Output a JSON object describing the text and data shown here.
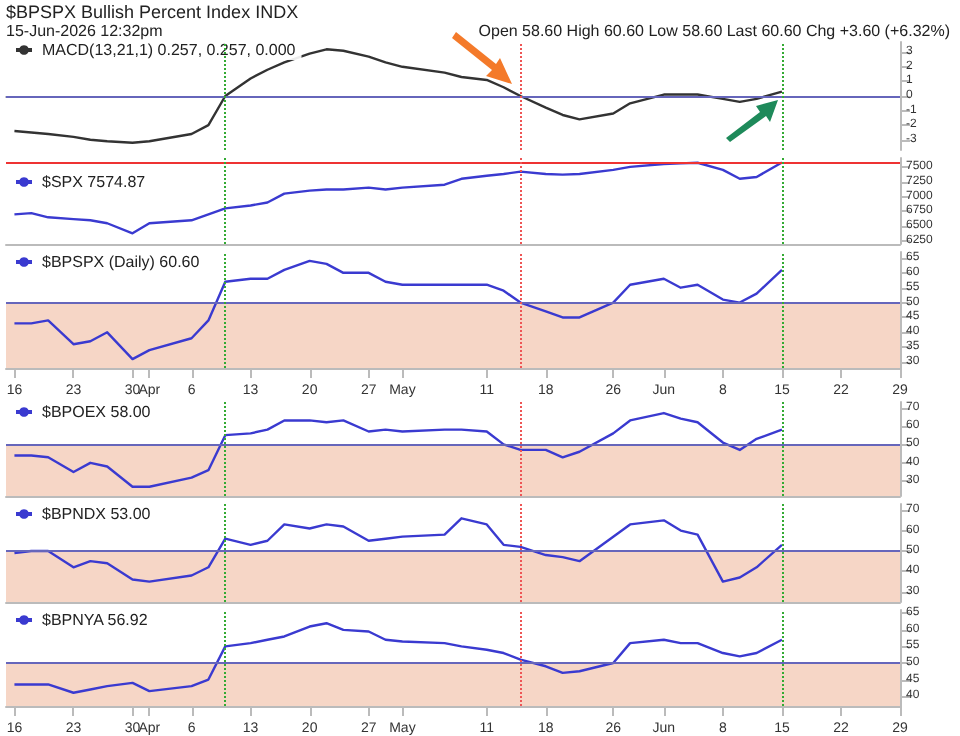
{
  "chart_data": [
    {
      "type": "line",
      "title": "$BPSPX Bullish Percent Index INDX",
      "subtitle": "15-Jun-2026 12:32pm",
      "annotations": [
        "Open 58.60  High 60.60  Low 58.60  Last 60.60  Chg +3.60 (+6.32%)"
      ],
      "legend": "top left",
      "tick_labels": "y",
      "xlim": [
        "2026-03-15",
        "2026-06-29"
      ],
      "ylim": [
        -3.7,
        3.7
      ],
      "yticks": [
        -3,
        -2,
        -1,
        0,
        1,
        2,
        3
      ],
      "x": [
        "2026-03-16",
        "2026-03-18",
        "2026-03-20",
        "2026-03-23",
        "2026-03-25",
        "2026-03-27",
        "2026-03-30",
        "2026-04-01",
        "2026-04-06",
        "2026-04-08",
        "2026-04-10",
        "2026-04-13",
        "2026-04-15",
        "2026-04-17",
        "2026-04-20",
        "2026-04-22",
        "2026-04-24",
        "2026-04-27",
        "2026-04-29",
        "2026-05-01",
        "2026-05-06",
        "2026-05-08",
        "2026-05-11",
        "2026-05-13",
        "2026-05-15",
        "2026-05-18",
        "2026-05-20",
        "2026-05-22",
        "2026-05-26",
        "2026-05-28",
        "2026-06-01",
        "2026-06-03",
        "2026-06-05",
        "2026-06-08",
        "2026-06-10",
        "2026-06-12",
        "2026-06-15"
      ],
      "series": [
        {
          "name": "MACD(13,21,1) 0.257, 0.257, 0.000",
          "color": "#333333",
          "values": [
            -2.4,
            -2.5,
            -2.6,
            -2.8,
            -3,
            -3.1,
            -3.2,
            -3.1,
            -2.6,
            -2,
            0,
            1.2,
            1.8,
            2.3,
            2.9,
            3.2,
            3.1,
            2.7,
            2.3,
            2,
            1.6,
            1.3,
            1.1,
            0.6,
            0,
            -0.8,
            -1.3,
            -1.6,
            -1.2,
            -0.5,
            0.1,
            0.1,
            0.1,
            -0.2,
            -0.4,
            -0.2,
            0.3
          ]
        }
      ],
      "ref_lines": [
        {
          "axis": "y",
          "value": 0,
          "color": "#6666bb",
          "line_style": "solid"
        },
        {
          "axis": "x",
          "value": "2026-04-10",
          "color": "#33aa33",
          "line_style": "dotted"
        },
        {
          "axis": "x",
          "value": "2026-05-15",
          "color": "#ee5555",
          "line_style": "dotted"
        },
        {
          "axis": "x",
          "value": "2026-06-15",
          "color": "#33aa33",
          "line_style": "dotted"
        }
      ]
    },
    {
      "type": "line",
      "legend": "top left",
      "tick_labels": "y",
      "xlim": [
        "2026-03-15",
        "2026-06-29"
      ],
      "ylim": [
        6200,
        7650
      ],
      "yticks": [
        6250,
        6500,
        6750,
        7000,
        7250,
        7500
      ],
      "x": [
        "2026-03-16",
        "2026-03-18",
        "2026-03-20",
        "2026-03-23",
        "2026-03-25",
        "2026-03-27",
        "2026-03-30",
        "2026-04-01",
        "2026-04-06",
        "2026-04-08",
        "2026-04-10",
        "2026-04-13",
        "2026-04-15",
        "2026-04-17",
        "2026-04-20",
        "2026-04-22",
        "2026-04-24",
        "2026-04-27",
        "2026-04-29",
        "2026-05-01",
        "2026-05-06",
        "2026-05-08",
        "2026-05-11",
        "2026-05-13",
        "2026-05-15",
        "2026-05-18",
        "2026-05-20",
        "2026-05-22",
        "2026-05-26",
        "2026-05-28",
        "2026-06-01",
        "2026-06-03",
        "2026-06-05",
        "2026-06-08",
        "2026-06-10",
        "2026-06-12",
        "2026-06-15"
      ],
      "series": [
        {
          "name": "$SPX 7574.87",
          "color": "#3a3ad0",
          "values": [
            6700,
            6720,
            6650,
            6620,
            6600,
            6550,
            6380,
            6550,
            6600,
            6700,
            6800,
            6850,
            6900,
            7050,
            7100,
            7120,
            7120,
            7150,
            7120,
            7150,
            7200,
            7300,
            7350,
            7380,
            7420,
            7380,
            7370,
            7380,
            7450,
            7500,
            7550,
            7560,
            7570,
            7450,
            7300,
            7330,
            7575
          ]
        }
      ],
      "ref_lines": [
        {
          "axis": "y",
          "value": 7575,
          "color": "#ee3333",
          "line_style": "solid"
        },
        {
          "axis": "x",
          "value": "2026-04-10",
          "color": "#33aa33",
          "line_style": "dotted"
        },
        {
          "axis": "x",
          "value": "2026-05-15",
          "color": "#ee5555",
          "line_style": "dotted"
        },
        {
          "axis": "x",
          "value": "2026-06-15",
          "color": "#33aa33",
          "line_style": "dotted"
        }
      ]
    },
    {
      "type": "line",
      "legend": "top left",
      "xlim": [
        "2026-03-15",
        "2026-06-29"
      ],
      "ylim": [
        28,
        67
      ],
      "yticks": [
        30,
        35,
        40,
        45,
        50,
        55,
        60,
        65
      ],
      "xticks": [
        {
          "value": "2026-03-16",
          "label": "16"
        },
        {
          "value": "2026-03-23",
          "label": "23"
        },
        {
          "value": "2026-03-30",
          "label": "30"
        },
        {
          "value": "2026-04-01",
          "label": "Apr"
        },
        {
          "value": "2026-04-06",
          "label": "6"
        },
        {
          "value": "2026-04-13",
          "label": "13"
        },
        {
          "value": "2026-04-20",
          "label": "20"
        },
        {
          "value": "2026-04-27",
          "label": "27"
        },
        {
          "value": "2026-05-01",
          "label": "May"
        },
        {
          "value": "2026-05-11",
          "label": "11"
        },
        {
          "value": "2026-05-18",
          "label": "18"
        },
        {
          "value": "2026-05-26",
          "label": "26"
        },
        {
          "value": "2026-06-01",
          "label": "Jun"
        },
        {
          "value": "2026-06-08",
          "label": "8"
        },
        {
          "value": "2026-06-15",
          "label": "15"
        },
        {
          "value": "2026-06-22",
          "label": "22"
        },
        {
          "value": "2026-06-29",
          "label": "29"
        }
      ],
      "x": [
        "2026-03-16",
        "2026-03-18",
        "2026-03-20",
        "2026-03-23",
        "2026-03-25",
        "2026-03-27",
        "2026-03-30",
        "2026-04-01",
        "2026-04-06",
        "2026-04-08",
        "2026-04-10",
        "2026-04-13",
        "2026-04-15",
        "2026-04-17",
        "2026-04-20",
        "2026-04-22",
        "2026-04-24",
        "2026-04-27",
        "2026-04-29",
        "2026-05-01",
        "2026-05-06",
        "2026-05-08",
        "2026-05-11",
        "2026-05-13",
        "2026-05-15",
        "2026-05-18",
        "2026-05-20",
        "2026-05-22",
        "2026-05-26",
        "2026-05-28",
        "2026-06-01",
        "2026-06-03",
        "2026-06-05",
        "2026-06-08",
        "2026-06-10",
        "2026-06-12",
        "2026-06-15"
      ],
      "series": [
        {
          "name": "$BPSPX (Daily) 60.60",
          "color": "#3a3ad0",
          "values": [
            43,
            43,
            44,
            36,
            37,
            40,
            31,
            34,
            38,
            44,
            57,
            58,
            58,
            61,
            64,
            63,
            60,
            60,
            57,
            56,
            56,
            56,
            56,
            54,
            50,
            47,
            45,
            45,
            50,
            56,
            58,
            55,
            56,
            51,
            50,
            53,
            61
          ]
        }
      ],
      "ref_lines": [
        {
          "axis": "y",
          "value": 50,
          "color": "#6666bb",
          "line_style": "solid"
        },
        {
          "axis": "x",
          "value": "2026-04-10",
          "color": "#33aa33",
          "line_style": "dotted"
        },
        {
          "axis": "x",
          "value": "2026-05-15",
          "color": "#ee5555",
          "line_style": "dotted"
        },
        {
          "axis": "x",
          "value": "2026-06-15",
          "color": "#33aa33",
          "line_style": "dotted"
        }
      ],
      "bands": [
        {
          "axis": "y",
          "from": 28,
          "to": 50,
          "color": "#f6d6c6"
        }
      ]
    },
    {
      "type": "line",
      "legend": "top left",
      "tick_labels": "y",
      "xlim": [
        "2026-03-15",
        "2026-06-29"
      ],
      "ylim": [
        22,
        73
      ],
      "yticks": [
        30,
        40,
        50,
        60,
        70
      ],
      "x": [
        "2026-03-16",
        "2026-03-18",
        "2026-03-20",
        "2026-03-23",
        "2026-03-25",
        "2026-03-27",
        "2026-03-30",
        "2026-04-01",
        "2026-04-06",
        "2026-04-08",
        "2026-04-10",
        "2026-04-13",
        "2026-04-15",
        "2026-04-17",
        "2026-04-20",
        "2026-04-22",
        "2026-04-24",
        "2026-04-27",
        "2026-04-29",
        "2026-05-01",
        "2026-05-06",
        "2026-05-08",
        "2026-05-11",
        "2026-05-13",
        "2026-05-15",
        "2026-05-18",
        "2026-05-20",
        "2026-05-22",
        "2026-05-26",
        "2026-05-28",
        "2026-06-01",
        "2026-06-03",
        "2026-06-05",
        "2026-06-08",
        "2026-06-10",
        "2026-06-12",
        "2026-06-15"
      ],
      "series": [
        {
          "name": "$BPOEX 58.00",
          "color": "#3a3ad0",
          "values": [
            44,
            44,
            43,
            35,
            40,
            38,
            27,
            27,
            32,
            36,
            55,
            56,
            58,
            63,
            63,
            62,
            63,
            57,
            58,
            57,
            58,
            58,
            57,
            50,
            47,
            47,
            43,
            46,
            56,
            63,
            67,
            64,
            62,
            51,
            47,
            53,
            58
          ]
        }
      ],
      "ref_lines": [
        {
          "axis": "y",
          "value": 50,
          "color": "#6666bb",
          "line_style": "solid"
        },
        {
          "axis": "x",
          "value": "2026-04-10",
          "color": "#33aa33",
          "line_style": "dotted"
        },
        {
          "axis": "x",
          "value": "2026-05-15",
          "color": "#ee5555",
          "line_style": "dotted"
        },
        {
          "axis": "x",
          "value": "2026-06-15",
          "color": "#33aa33",
          "line_style": "dotted"
        }
      ],
      "bands": [
        {
          "axis": "y",
          "from": 22,
          "to": 50,
          "color": "#f6d6c6"
        }
      ]
    },
    {
      "type": "line",
      "legend": "top left",
      "tick_labels": "y",
      "xlim": [
        "2026-03-15",
        "2026-06-29"
      ],
      "ylim": [
        25,
        73
      ],
      "yticks": [
        30,
        40,
        50,
        60,
        70
      ],
      "x": [
        "2026-03-16",
        "2026-03-18",
        "2026-03-20",
        "2026-03-23",
        "2026-03-25",
        "2026-03-27",
        "2026-03-30",
        "2026-04-01",
        "2026-04-06",
        "2026-04-08",
        "2026-04-10",
        "2026-04-13",
        "2026-04-15",
        "2026-04-17",
        "2026-04-20",
        "2026-04-22",
        "2026-04-24",
        "2026-04-27",
        "2026-04-29",
        "2026-05-01",
        "2026-05-06",
        "2026-05-08",
        "2026-05-11",
        "2026-05-13",
        "2026-05-15",
        "2026-05-18",
        "2026-05-20",
        "2026-05-22",
        "2026-05-26",
        "2026-05-28",
        "2026-06-01",
        "2026-06-03",
        "2026-06-05",
        "2026-06-08",
        "2026-06-10",
        "2026-06-12",
        "2026-06-15"
      ],
      "series": [
        {
          "name": "$BPNDX 53.00",
          "color": "#3a3ad0",
          "values": [
            49,
            50,
            50,
            42,
            45,
            44,
            36,
            35,
            38,
            42,
            56,
            53,
            55,
            63,
            61,
            63,
            62,
            55,
            56,
            57,
            58,
            66,
            63,
            53,
            52,
            48,
            47,
            45,
            57,
            63,
            65,
            60,
            58,
            35,
            37,
            42,
            53
          ]
        }
      ],
      "ref_lines": [
        {
          "axis": "y",
          "value": 50,
          "color": "#6666bb",
          "line_style": "solid"
        },
        {
          "axis": "x",
          "value": "2026-04-10",
          "color": "#33aa33",
          "line_style": "dotted"
        },
        {
          "axis": "x",
          "value": "2026-05-15",
          "color": "#ee5555",
          "line_style": "dotted"
        },
        {
          "axis": "x",
          "value": "2026-06-15",
          "color": "#33aa33",
          "line_style": "dotted"
        }
      ],
      "bands": [
        {
          "axis": "y",
          "from": 25,
          "to": 50,
          "color": "#f6d6c6"
        }
      ]
    },
    {
      "type": "line",
      "legend": "top left",
      "xlim": [
        "2026-03-15",
        "2026-06-29"
      ],
      "ylim": [
        37,
        66
      ],
      "yticks": [
        40,
        45,
        50,
        55,
        60,
        65
      ],
      "xticks": [
        {
          "value": "2026-03-16",
          "label": "16"
        },
        {
          "value": "2026-03-23",
          "label": "23"
        },
        {
          "value": "2026-03-30",
          "label": "30"
        },
        {
          "value": "2026-04-01",
          "label": "Apr"
        },
        {
          "value": "2026-04-06",
          "label": "6"
        },
        {
          "value": "2026-04-13",
          "label": "13"
        },
        {
          "value": "2026-04-20",
          "label": "20"
        },
        {
          "value": "2026-04-27",
          "label": "27"
        },
        {
          "value": "2026-05-01",
          "label": "May"
        },
        {
          "value": "2026-05-11",
          "label": "11"
        },
        {
          "value": "2026-05-18",
          "label": "18"
        },
        {
          "value": "2026-05-26",
          "label": "26"
        },
        {
          "value": "2026-06-01",
          "label": "Jun"
        },
        {
          "value": "2026-06-08",
          "label": "8"
        },
        {
          "value": "2026-06-15",
          "label": "15"
        },
        {
          "value": "2026-06-22",
          "label": "22"
        },
        {
          "value": "2026-06-29",
          "label": "29"
        }
      ],
      "x": [
        "2026-03-16",
        "2026-03-18",
        "2026-03-20",
        "2026-03-23",
        "2026-03-25",
        "2026-03-27",
        "2026-03-30",
        "2026-04-01",
        "2026-04-06",
        "2026-04-08",
        "2026-04-10",
        "2026-04-13",
        "2026-04-15",
        "2026-04-17",
        "2026-04-20",
        "2026-04-22",
        "2026-04-24",
        "2026-04-27",
        "2026-04-29",
        "2026-05-01",
        "2026-05-06",
        "2026-05-08",
        "2026-05-11",
        "2026-05-13",
        "2026-05-15",
        "2026-05-18",
        "2026-05-20",
        "2026-05-22",
        "2026-05-26",
        "2026-05-28",
        "2026-06-01",
        "2026-06-03",
        "2026-06-05",
        "2026-06-08",
        "2026-06-10",
        "2026-06-12",
        "2026-06-15"
      ],
      "series": [
        {
          "name": "$BPNYA 56.92",
          "color": "#3a3ad0",
          "values": [
            43.5,
            43.5,
            43.5,
            41,
            42,
            43,
            44,
            41.5,
            43,
            45,
            55,
            56,
            57,
            58,
            61,
            62,
            60,
            59.5,
            57,
            56.5,
            56,
            55,
            54,
            53,
            51,
            49,
            47,
            47.5,
            50,
            56,
            57,
            56,
            56,
            53,
            52,
            53,
            57
          ]
        }
      ],
      "ref_lines": [
        {
          "axis": "y",
          "value": 50,
          "color": "#6666bb",
          "line_style": "solid"
        },
        {
          "axis": "x",
          "value": "2026-04-10",
          "color": "#33aa33",
          "line_style": "dotted"
        },
        {
          "axis": "x",
          "value": "2026-05-15",
          "color": "#ee5555",
          "line_style": "dotted"
        },
        {
          "axis": "x",
          "value": "2026-06-15",
          "color": "#33aa33",
          "line_style": "dotted"
        }
      ],
      "bands": [
        {
          "axis": "y",
          "from": 37,
          "to": 50,
          "color": "#f6d6c6"
        }
      ]
    }
  ]
}
